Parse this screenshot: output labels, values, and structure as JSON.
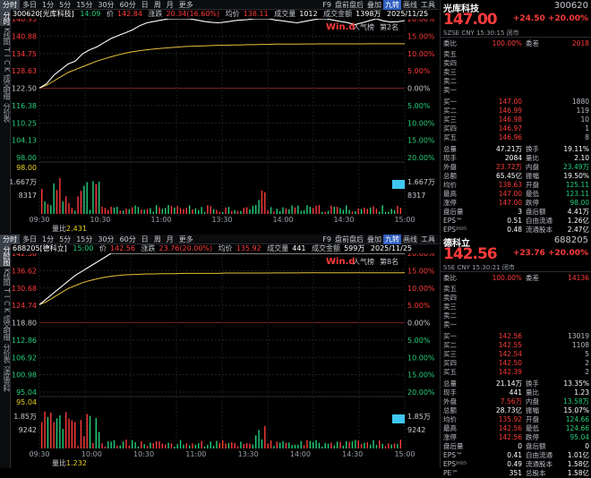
{
  "side_tabs_1": [
    "分时",
    "K线图",
    "T",
    "I",
    "C",
    "K",
    "成交明细",
    "分价表"
  ],
  "side_tabs_2": [
    "分时图",
    "K线图",
    "T",
    "I",
    "C",
    "K",
    "成交明细",
    "分价表",
    "深度资料"
  ],
  "timeframes": [
    "分时",
    "多日",
    "1分",
    "5分",
    "15分",
    "30分",
    "60分",
    "日",
    "周",
    "月",
    "更多"
  ],
  "toolbar_right": [
    "F9",
    "盘前盘后",
    "叠加",
    "九转",
    "画线",
    "工具"
  ],
  "chart1": {
    "info": {
      "code": "300620[光库科技]",
      "time": "14:09",
      "price_lbl": "价",
      "price": "142.84",
      "chg_lbl": "涨跌",
      "chg": "20.34(16.60%)",
      "avg_lbl": "均价",
      "avg": "138.11",
      "vol_lbl": "成交量",
      "vol": "1012",
      "amt_lbl": "成交金额",
      "amt": "1398万",
      "date": "2025/11/25"
    },
    "left_labels": [
      "146.93",
      "140.88",
      "134.75",
      "128.63",
      "122.50",
      "116.38",
      "110.25",
      "104.13",
      "98.00"
    ],
    "right_labels": [
      "20.00%",
      "15.00%",
      "10.00%",
      "5.00%",
      "0.00%",
      "5.00%",
      "10.00%",
      "15.00%",
      "20.00%"
    ],
    "vol_left": [
      "98.00",
      "1.667万",
      "8317"
    ],
    "vol_right": [
      "1.667万",
      "8317"
    ],
    "wind_text": "Win.d",
    "rank_text": "人气榜",
    "rank": "第2名",
    "ratio_lbl": "量比",
    "ratio": "2.431",
    "times": [
      "09:30",
      "10:30",
      "11:00",
      "13:30",
      "14:00",
      "14:30",
      "15:00"
    ],
    "chart_data": {
      "type": "line",
      "y_range": [
        98.0,
        146.93
      ],
      "prev_close": 122.5,
      "price": [
        122.5,
        124,
        127,
        129,
        131,
        132,
        134.5,
        136,
        137,
        138.5,
        140,
        141,
        142,
        143,
        144.5,
        145.5,
        146,
        146.5,
        146.9,
        146.93,
        146.93,
        146.9,
        146.5,
        146.0,
        145.7,
        145.5,
        145.8,
        146.2,
        146.5,
        146.6,
        146.93,
        146.93,
        146.93,
        146.5,
        146.2,
        145.8,
        145.5,
        146.0,
        146.5,
        146.9,
        146.93,
        146.5,
        146.0,
        145.6,
        144.8,
        145.5,
        146.2,
        146.93,
        146.2,
        145.8,
        145.9,
        146.3
      ],
      "avg": [
        122.5,
        123.5,
        125,
        126.5,
        128,
        129,
        130,
        131,
        132,
        132.8,
        133.5,
        134.2,
        134.8,
        135.3,
        135.7,
        136,
        136.3,
        136.5,
        136.7,
        136.9,
        137.1,
        137.2,
        137.3,
        137.4,
        137.5,
        137.6,
        137.6,
        137.7,
        137.7,
        137.8,
        137.8,
        137.9,
        137.9,
        138,
        138,
        138,
        138,
        138.05,
        138.05,
        138.1,
        138.1,
        138.1,
        138.1,
        138.1,
        138.1,
        138.1,
        138.11,
        138.11,
        138.11,
        138.11,
        138.11,
        138.11
      ]
    }
  },
  "chart2": {
    "info": {
      "code": "688205[德科立]",
      "time": "15:00",
      "price_lbl": "价",
      "price": "142.56",
      "chg_lbl": "涨跌",
      "chg": "23.76(20.00%)",
      "avg_lbl": "均价",
      "avg": "135.92",
      "vol_lbl": "成交量",
      "vol": "441",
      "amt_lbl": "成交金额",
      "amt": "599万",
      "date": "2025/11/25"
    },
    "left_labels": [
      "142.56",
      "136.62",
      "130.68",
      "124.74",
      "118.80",
      "112.86",
      "106.92",
      "100.98",
      "95.04"
    ],
    "right_labels": [
      "20.00%",
      "15.00%",
      "10.00%",
      "5.00%",
      "0.00%",
      "5.00%",
      "10.00%",
      "15.00%",
      "20.00%"
    ],
    "vol_left": [
      "95.04",
      "1.85万",
      "9242"
    ],
    "vol_right": [
      "1.85万",
      "9242"
    ],
    "wind_text": "Win.d",
    "rank_text": "人气榜",
    "rank": "第8名",
    "ratio_lbl": "量比",
    "ratio": "1.232",
    "times": [
      "09:30",
      "10:00",
      "10:30",
      "11:00",
      "13:30",
      "14:00",
      "14:30",
      "15:00"
    ],
    "chart_data": {
      "type": "line",
      "y_range": [
        95.04,
        142.56
      ],
      "prev_close": 118.8,
      "price": [
        125,
        127,
        129,
        131,
        133,
        135,
        136.5,
        138,
        139.5,
        141,
        142.56,
        142.56,
        142.56,
        142.56,
        142.56,
        142.56,
        142.56,
        142.56,
        142.56,
        142.56,
        142.56,
        142.56,
        142.56,
        142.56,
        142.56,
        142.56,
        142.56,
        142.56,
        142.56,
        142.56,
        142.56,
        142.56,
        142.56,
        142.56,
        142.56,
        142.56,
        142.56,
        142.56,
        142.56,
        142.56,
        142.56,
        142.56,
        142.56,
        142.56,
        142.56,
        142.56,
        142.56,
        142.56,
        142.56,
        142.56,
        142.56,
        142.56
      ],
      "avg": [
        125,
        126,
        127.5,
        129,
        130.5,
        131.5,
        132.5,
        133.2,
        133.8,
        134.3,
        134.7,
        135,
        135.2,
        135.3,
        135.4,
        135.5,
        135.5,
        135.6,
        135.6,
        135.6,
        135.7,
        135.7,
        135.7,
        135.7,
        135.7,
        135.7,
        135.8,
        135.8,
        135.8,
        135.8,
        135.8,
        135.8,
        135.8,
        135.85,
        135.85,
        135.85,
        135.85,
        135.9,
        135.9,
        135.9,
        135.9,
        135.9,
        135.9,
        135.9,
        135.92,
        135.92,
        135.92,
        135.92,
        135.92,
        135.92,
        135.92,
        135.92
      ]
    }
  },
  "quote1": {
    "name": "光库科技",
    "code": "300620",
    "price": "147.00",
    "chg": "+24.50",
    "pct": "+20.00%",
    "sub": "SZSE  CNY  15:30:15  闭市",
    "ratio_lbl": "委比",
    "ratio": "100.00%",
    "diff_lbl": "委差",
    "diff": "2018",
    "asks": [
      {
        "l": "卖五",
        "p": "",
        "v": ""
      },
      {
        "l": "卖四",
        "p": "",
        "v": ""
      },
      {
        "l": "卖三",
        "p": "",
        "v": ""
      },
      {
        "l": "卖二",
        "p": "",
        "v": ""
      },
      {
        "l": "卖一",
        "p": "",
        "v": ""
      }
    ],
    "bids": [
      {
        "l": "买一",
        "p": "147.00",
        "v": "1880"
      },
      {
        "l": "买二",
        "p": "146.99",
        "v": "119"
      },
      {
        "l": "买三",
        "p": "146.98",
        "v": "10"
      },
      {
        "l": "买四",
        "p": "146.97",
        "v": "1"
      },
      {
        "l": "买五",
        "p": "146.96",
        "v": "8"
      }
    ],
    "stats": [
      [
        "总量",
        "47.21万",
        "换手",
        "19.11%"
      ],
      [
        "现手",
        "2084",
        "量比",
        "2.10"
      ],
      [
        "外盘",
        "23.72万",
        "内盘",
        "23.49万"
      ],
      [
        "总额",
        "65.45亿",
        "振幅",
        "19.50%"
      ],
      [
        "均价",
        "138.63",
        "开盘",
        "125.11"
      ],
      [
        "最高",
        "147.00",
        "最低",
        "123.11"
      ],
      [
        "涨停",
        "147.00",
        "跌停",
        "98.00"
      ],
      [
        "盘后量",
        "3",
        "盘后额",
        "4.41万"
      ],
      [
        "EPS™",
        "0.51",
        "自由流通",
        "1.26亿"
      ],
      [
        "EPS²⁰²⁵",
        "0.48",
        "流通股本",
        "2.47亿"
      ]
    ]
  },
  "quote2": {
    "name": "德科立",
    "code": "688205",
    "price": "142.56",
    "chg": "+23.76",
    "pct": "+20.00%",
    "sub": "SSE  CNY  15:30:21  闭市",
    "ratio_lbl": "委比",
    "ratio": "100.00%",
    "diff_lbl": "委差",
    "diff": "14136",
    "asks": [
      {
        "l": "卖五",
        "p": "",
        "v": ""
      },
      {
        "l": "卖四",
        "p": "",
        "v": ""
      },
      {
        "l": "卖三",
        "p": "",
        "v": ""
      },
      {
        "l": "卖二",
        "p": "",
        "v": ""
      },
      {
        "l": "卖一",
        "p": "",
        "v": ""
      }
    ],
    "bids": [
      {
        "l": "买一",
        "p": "142.56",
        "v": "13019"
      },
      {
        "l": "买二",
        "p": "142.55",
        "v": "1108"
      },
      {
        "l": "买三",
        "p": "142.54",
        "v": "5"
      },
      {
        "l": "买四",
        "p": "142.50",
        "v": "2"
      },
      {
        "l": "买五",
        "p": "142.39",
        "v": "2"
      }
    ],
    "stats": [
      [
        "总量",
        "21.14万",
        "换手",
        "13.35%"
      ],
      [
        "现手",
        "441",
        "量比",
        "1.23"
      ],
      [
        "外盘",
        "7.56万",
        "内盘",
        "13.58万"
      ],
      [
        "总额",
        "28.73亿",
        "振幅",
        "15.07%"
      ],
      [
        "均价",
        "135.92",
        "开盘",
        "124.66"
      ],
      [
        "最高",
        "142.56",
        "最低",
        "124.66"
      ],
      [
        "涨停",
        "142.56",
        "跌停",
        "95.04"
      ],
      [
        "盘后量",
        "0",
        "盘后额",
        "0"
      ],
      [
        "EPS™",
        "0.41",
        "自由流通",
        "1.01亿"
      ],
      [
        "EPS²⁰²⁵",
        "0.49",
        "流通股本",
        "1.58亿"
      ],
      [
        "PE™",
        "351",
        "总股本",
        "1.58亿"
      ]
    ]
  }
}
